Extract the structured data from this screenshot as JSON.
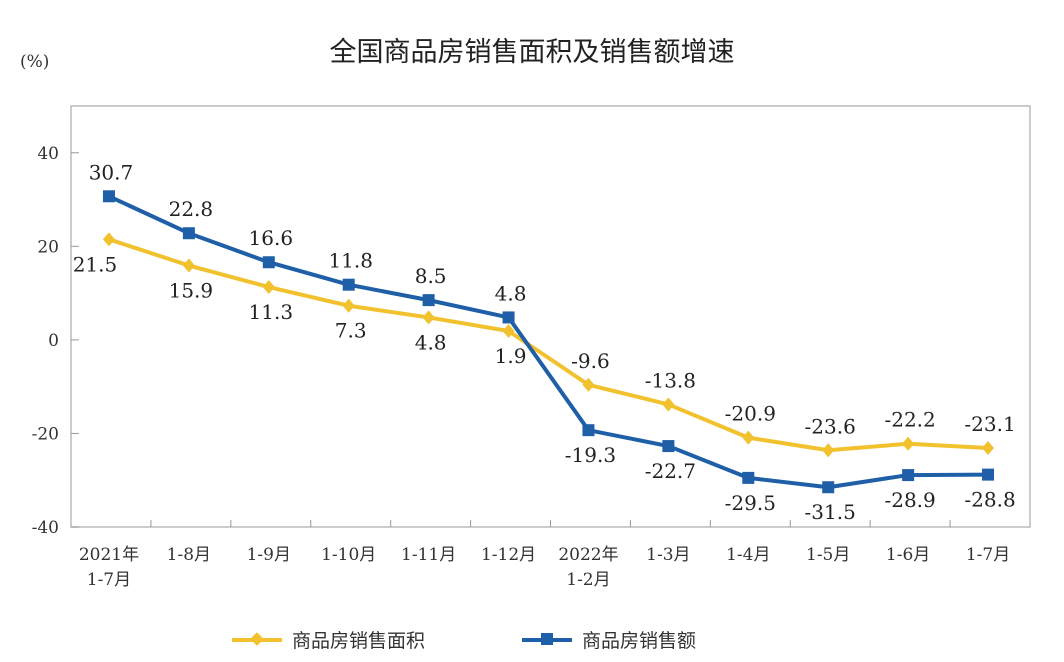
{
  "chart_data": {
    "type": "line",
    "title": "全国商品房销售面积及销售额增速",
    "ylabel": "(%)",
    "ylim": [
      -40,
      50
    ],
    "yticks": [
      40,
      20,
      0,
      -20,
      -40
    ],
    "grid": false,
    "legend_position": "bottom",
    "categories": [
      "2021年\n1-7月",
      "1-8月",
      "1-9月",
      "1-10月",
      "1-11月",
      "1-12月",
      "2022年\n1-2月",
      "1-3月",
      "1-4月",
      "1-5月",
      "1-6月",
      "1-7月"
    ],
    "series": [
      {
        "name": "商品房销售面积",
        "color": "#F2C12E",
        "marker": "diamond",
        "values": [
          21.5,
          15.9,
          11.3,
          7.3,
          4.8,
          1.9,
          -9.6,
          -13.8,
          -20.9,
          -23.6,
          -22.2,
          -23.1
        ]
      },
      {
        "name": "商品房销售额",
        "color": "#1F5FA8",
        "marker": "square",
        "values": [
          30.7,
          22.8,
          16.6,
          11.8,
          8.5,
          4.8,
          -19.3,
          -22.7,
          -29.5,
          -31.5,
          -28.9,
          -28.8
        ]
      }
    ]
  }
}
